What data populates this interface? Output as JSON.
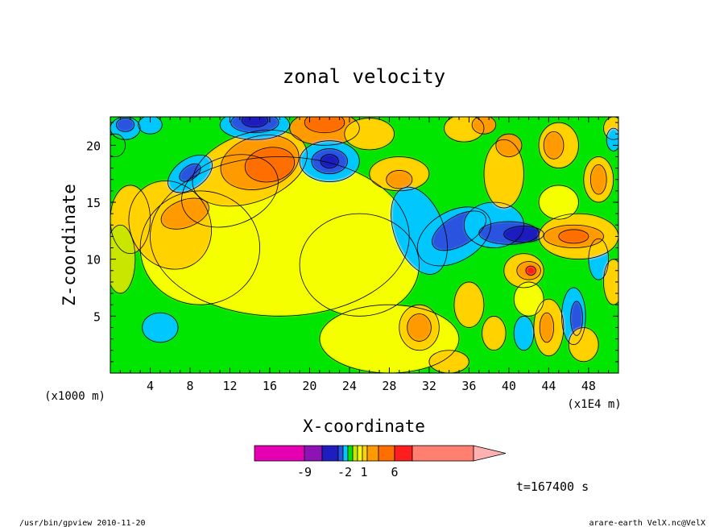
{
  "chart_data": {
    "type": "heatmap",
    "title": "zonal velocity",
    "xlabel": "X-coordinate",
    "ylabel": "Z-coordinate",
    "x_unit_left": "(x1000 m)",
    "x_unit_right": "(x1E4 m)",
    "x_ticks": [
      4,
      8,
      12,
      16,
      20,
      24,
      28,
      32,
      36,
      40,
      44,
      48
    ],
    "y_ticks": [
      5,
      10,
      15,
      20
    ],
    "xlim": [
      0,
      51
    ],
    "ylim": [
      0,
      22.5
    ],
    "grid": false,
    "colorbar": {
      "orientation": "horizontal",
      "tick_labels": [
        "-9",
        "-2",
        "1",
        "6"
      ],
      "colors": [
        "#e600b4",
        "#8c14b4",
        "#1e1ebe",
        "#2a52e0",
        "#00c8ff",
        "#00e600",
        "#c8e600",
        "#f5ff00",
        "#ffd200",
        "#ff9b00",
        "#ff6e00",
        "#ff1e1e",
        "#ff8070",
        "#ffb0b0"
      ]
    },
    "time_label": "t=167400 s",
    "footer_left": "/usr/bin/gpview   2010-11-20",
    "footer_right": "arare-earth_VelX.nc@VelX"
  }
}
